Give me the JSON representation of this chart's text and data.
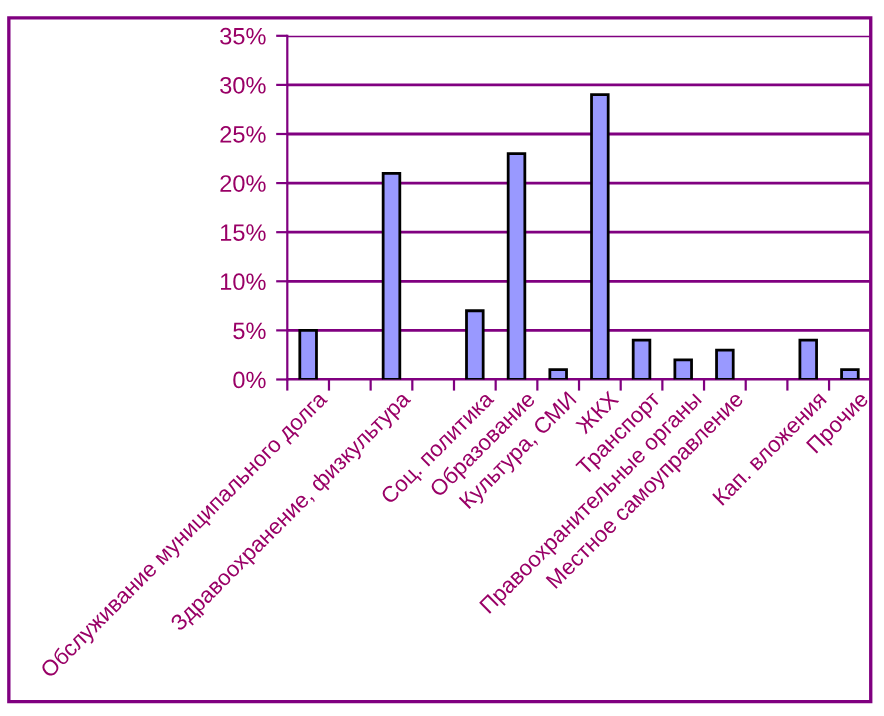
{
  "chart_data": {
    "type": "bar",
    "categories": [
      "Обслуживание муниципального долга",
      null,
      "Здравоохранение, физкультура",
      null,
      "Соц. политика",
      "Образование",
      "Культура, СМИ",
      "ЖКХ",
      "Транспорт",
      "Правоохранительные органы",
      "Местное самоуправление",
      null,
      "Кап. вложения",
      "Прочие"
    ],
    "values": [
      5,
      null,
      21,
      null,
      7,
      23,
      1,
      29,
      4,
      2,
      3,
      null,
      4,
      1
    ],
    "color": "#9999ff",
    "ylim": [
      0,
      35
    ],
    "yticks": [
      {
        "value": 0,
        "label": "0%"
      },
      {
        "value": 5,
        "label": "5%"
      },
      {
        "value": 10,
        "label": "10%"
      },
      {
        "value": 15,
        "label": "15%"
      },
      {
        "value": 20,
        "label": "20%"
      },
      {
        "value": 25,
        "label": "25%"
      },
      {
        "value": 30,
        "label": "30%"
      },
      {
        "value": 35,
        "label": "35%"
      }
    ],
    "grid": "y",
    "legend": false
  }
}
